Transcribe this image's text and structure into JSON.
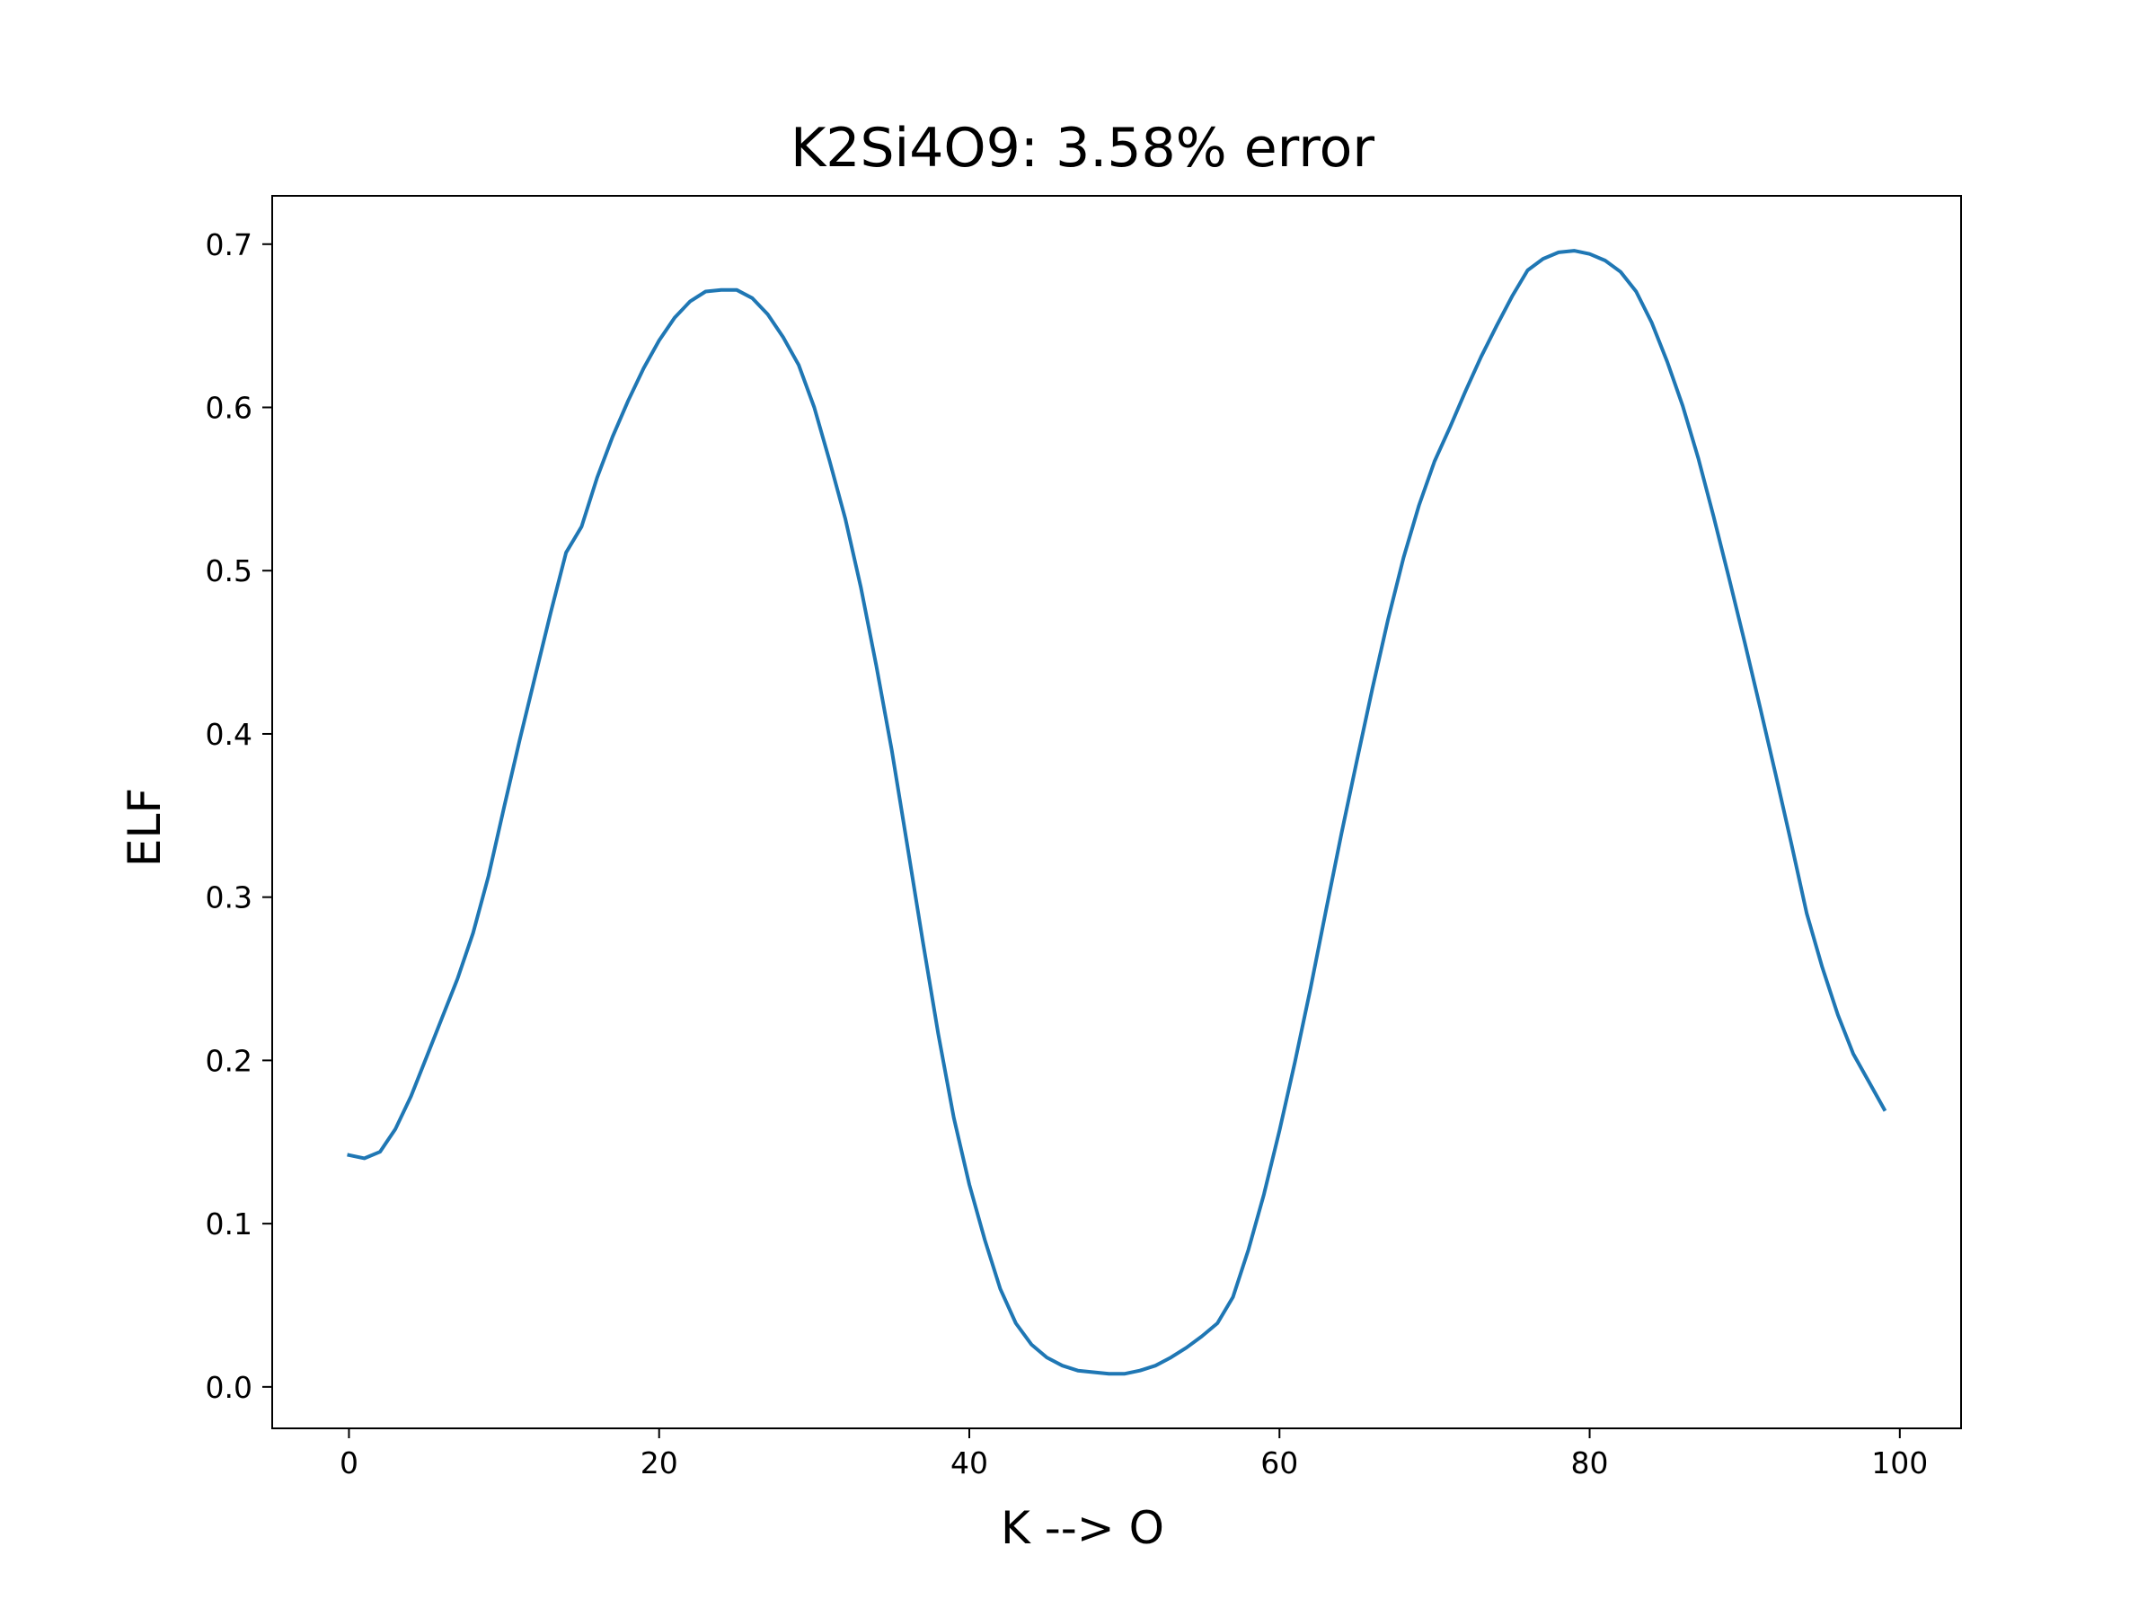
{
  "chart_data": {
    "type": "line",
    "title": "K2Si4O9: 3.58% error",
    "xlabel": "K --> O",
    "ylabel": "ELF",
    "xlim": [
      -4.95,
      103.95
    ],
    "ylim": [
      -0.0254,
      0.7296
    ],
    "xticks": [
      0,
      20,
      40,
      60,
      80,
      100
    ],
    "xtick_labels": [
      "0",
      "20",
      "40",
      "60",
      "80",
      "100"
    ],
    "yticks": [
      0.0,
      0.1,
      0.2,
      0.3,
      0.4,
      0.5,
      0.6,
      0.7
    ],
    "ytick_labels": [
      "0.0",
      "0.1",
      "0.2",
      "0.3",
      "0.4",
      "0.5",
      "0.6",
      "0.7"
    ],
    "grid": false,
    "legend": "none",
    "series": [
      {
        "color": "#1f77b4",
        "x": [
          0,
          1,
          2,
          3,
          4,
          5,
          6,
          7,
          8,
          9,
          10,
          11,
          12,
          13,
          14,
          15,
          16,
          17,
          18,
          19,
          20,
          21,
          22,
          23,
          24,
          25,
          26,
          27,
          28,
          29,
          30,
          31,
          32,
          33,
          34,
          35,
          36,
          37,
          38,
          39,
          40,
          41,
          42,
          43,
          44,
          45,
          46,
          47,
          48,
          49,
          50,
          51,
          52,
          53,
          54,
          55,
          56,
          57,
          58,
          59,
          60,
          61,
          62,
          63,
          64,
          65,
          66,
          67,
          68,
          69,
          70,
          71,
          72,
          73,
          74,
          75,
          76,
          77,
          78,
          79,
          80,
          81,
          82,
          83,
          84,
          85,
          86,
          87,
          88,
          89,
          90,
          91,
          92,
          93,
          94,
          95,
          96,
          97,
          98,
          99
        ],
        "y": [
          0.142,
          0.14,
          0.144,
          0.158,
          0.178,
          0.202,
          0.226,
          0.25,
          0.278,
          0.313,
          0.355,
          0.396,
          0.435,
          0.474,
          0.511,
          0.527,
          0.557,
          0.582,
          0.604,
          0.624,
          0.641,
          0.655,
          0.665,
          0.671,
          0.672,
          0.672,
          0.667,
          0.657,
          0.643,
          0.626,
          0.6,
          0.567,
          0.532,
          0.49,
          0.442,
          0.39,
          0.332,
          0.273,
          0.216,
          0.165,
          0.124,
          0.09,
          0.06,
          0.039,
          0.026,
          0.018,
          0.013,
          0.01,
          0.009,
          0.008,
          0.008,
          0.01,
          0.013,
          0.018,
          0.024,
          0.031,
          0.039,
          0.055,
          0.084,
          0.118,
          0.157,
          0.199,
          0.244,
          0.292,
          0.339,
          0.384,
          0.428,
          0.47,
          0.508,
          0.54,
          0.567,
          0.588,
          0.61,
          0.631,
          0.65,
          0.668,
          0.684,
          0.691,
          0.695,
          0.696,
          0.694,
          0.69,
          0.683,
          0.671,
          0.652,
          0.628,
          0.601,
          0.569,
          0.533,
          0.495,
          0.456,
          0.416,
          0.375,
          0.333,
          0.29,
          0.257,
          0.228,
          0.204,
          0.187,
          0.17
        ]
      }
    ]
  }
}
